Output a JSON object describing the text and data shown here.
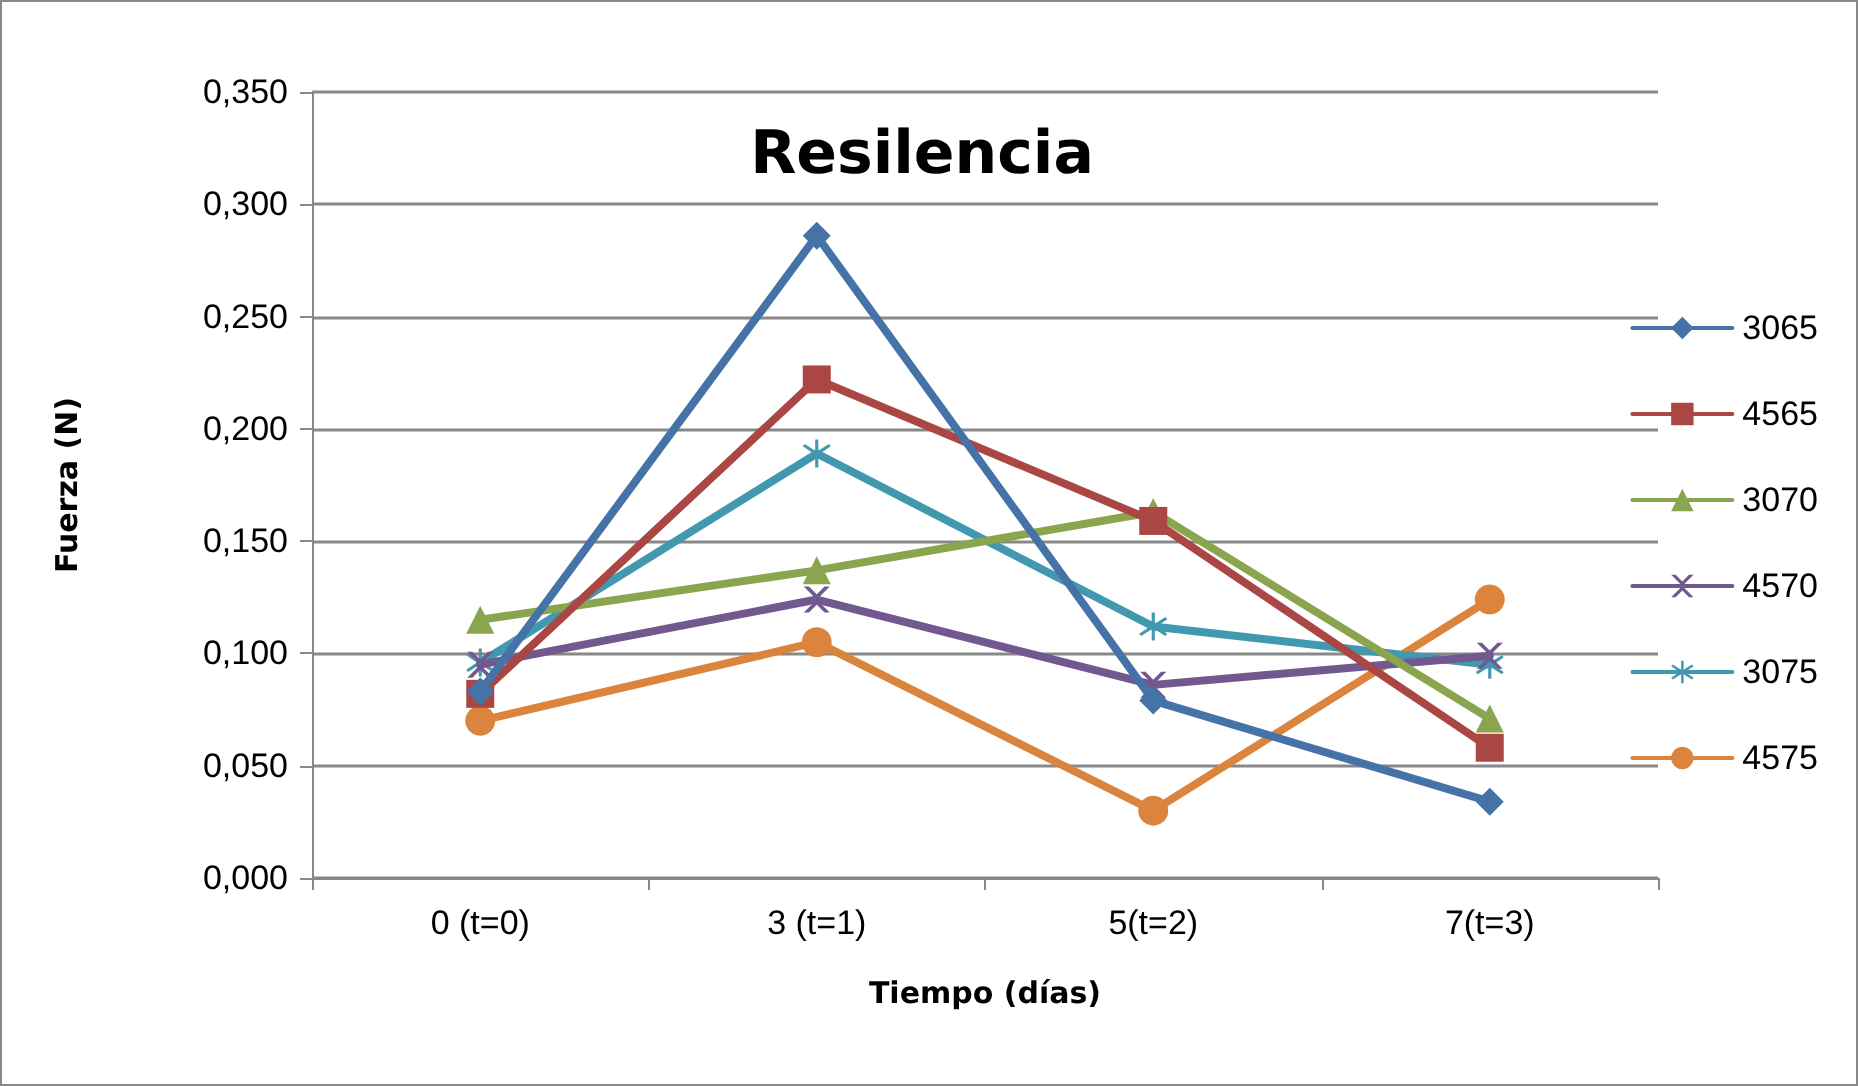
{
  "chart_data": {
    "type": "line",
    "title": "Resilencia",
    "xlabel": "Tiempo (días)",
    "ylabel": "Fuerza (N)",
    "categories": [
      "0 (t=0)",
      "3 (t=1)",
      "5(t=2)",
      "7(t=3)"
    ],
    "ylim": [
      0,
      0.35
    ],
    "yticks": [
      {
        "value": 0,
        "label": "0,000"
      },
      {
        "value": 0.05,
        "label": "0,050"
      },
      {
        "value": 0.1,
        "label": "0,100"
      },
      {
        "value": 0.15,
        "label": "0,150"
      },
      {
        "value": 0.2,
        "label": "0,200"
      },
      {
        "value": 0.25,
        "label": "0,250"
      },
      {
        "value": 0.3,
        "label": "0,300"
      },
      {
        "value": 0.35,
        "label": "0,350"
      }
    ],
    "grid": "y",
    "legend": "right",
    "line_style": "solid",
    "series": [
      {
        "name": "3065",
        "color": "#4572a7",
        "marker": "diamond",
        "values": [
          0.083,
          0.286,
          0.079,
          0.034
        ]
      },
      {
        "name": "4565",
        "color": "#aa4643",
        "marker": "square",
        "values": [
          0.082,
          0.222,
          0.159,
          0.058
        ]
      },
      {
        "name": "3070",
        "color": "#89a54e",
        "marker": "triangle",
        "values": [
          0.115,
          0.137,
          0.163,
          0.071
        ]
      },
      {
        "name": "4570",
        "color": "#71588f",
        "marker": "cross",
        "values": [
          0.095,
          0.124,
          0.086,
          0.099
        ]
      },
      {
        "name": "3075",
        "color": "#4198af",
        "marker": "star",
        "values": [
          0.096,
          0.189,
          0.112,
          0.095
        ]
      },
      {
        "name": "4575",
        "color": "#db843d",
        "marker": "circle",
        "values": [
          0.07,
          0.105,
          0.03,
          0.124
        ]
      }
    ]
  }
}
